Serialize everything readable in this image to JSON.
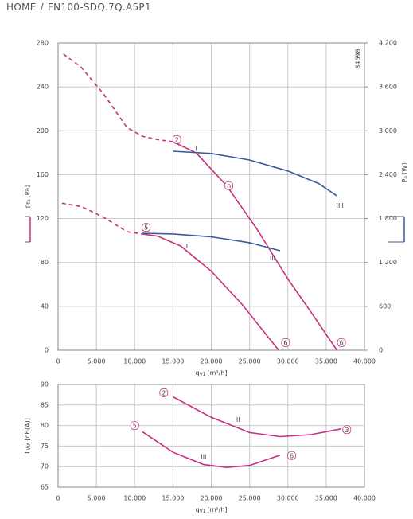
{
  "breadcrumb": {
    "home": "HOME",
    "separator": "/",
    "current": "FN100-SDQ.7Q.A5P1"
  },
  "chart_data": [
    {
      "type": "line",
      "code": "84698",
      "x_label": {
        "main": "q",
        "sub": "V1",
        "unit": "[m³/h]"
      },
      "y_label": {
        "main": "p",
        "sub": "fa",
        "unit": "[Pa]"
      },
      "y2_label": {
        "main": "P",
        "sub": "e",
        "unit": "[W]"
      },
      "xlim": [
        0,
        40000
      ],
      "xticks": [
        0,
        {
          "value": 5000,
          "label": "5.000"
        },
        {
          "value": 10000,
          "label": "10.000"
        },
        {
          "value": 15000,
          "label": "15.000"
        },
        {
          "value": 20000,
          "label": "20.000"
        },
        {
          "value": 25000,
          "label": "25.000"
        },
        {
          "value": 30000,
          "label": "30.000"
        },
        {
          "value": 35000,
          "label": "35.000"
        },
        {
          "value": 40000,
          "label": "40.000"
        }
      ],
      "ylim": [
        0,
        280
      ],
      "yticks": [
        0,
        40,
        80,
        120,
        160,
        200,
        240,
        280
      ],
      "y2lim": [
        0,
        4200
      ],
      "y2ticks": [
        0,
        600,
        {
          "value": 1200,
          "label": "1.200"
        },
        {
          "value": 1800,
          "label": "1.800"
        },
        {
          "value": 2400,
          "label": "2.400"
        },
        {
          "value": 3000,
          "label": "3.000"
        },
        {
          "value": 3600,
          "label": "3.600"
        },
        {
          "value": 4200,
          "label": "4.200"
        }
      ],
      "grid": true,
      "series": [
        {
          "color": "#c8307e",
          "dash": true,
          "x": [
            700,
            3000,
            6000,
            9000,
            11000,
            13000,
            15000
          ],
          "values": [
            270,
            258,
            233,
            203,
            195,
            192,
            190
          ]
        },
        {
          "color": "#c8307e",
          "x": [
            15000,
            18000,
            22000,
            26000,
            30000,
            33000,
            36400
          ],
          "values": [
            190,
            180,
            150,
            110,
            65,
            35,
            0
          ]
        },
        {
          "color": "#c8307e",
          "dash": true,
          "x": [
            500,
            3000,
            6000,
            9000,
            11000
          ],
          "values": [
            134,
            131,
            121,
            108,
            106
          ]
        },
        {
          "color": "#c8307e",
          "x": [
            11000,
            13000,
            16000,
            20000,
            24000,
            28800
          ],
          "values": [
            106,
            104,
            95,
            72,
            42,
            0
          ]
        },
        {
          "color": "#3a5a9c",
          "axis": "y2",
          "x": [
            15000,
            20000,
            25000,
            30000,
            34000,
            36400
          ],
          "values": [
            2720,
            2690,
            2600,
            2450,
            2280,
            2110
          ]
        },
        {
          "color": "#3a5a9c",
          "axis": "y2",
          "x": [
            11000,
            15000,
            20000,
            25000,
            29000
          ],
          "values": [
            1600,
            1590,
            1550,
            1470,
            1360
          ]
        }
      ],
      "annotations": [
        {
          "text": "2",
          "x": 15500,
          "y": 192,
          "circled": true
        },
        {
          "text": "I",
          "x": 18000,
          "y": 184
        },
        {
          "text": "n",
          "x": 22300,
          "y": 150,
          "circled": true
        },
        {
          "text": "5",
          "x": 11500,
          "y": 112,
          "circled": true
        },
        {
          "text": "II",
          "x": 16700,
          "y": 95
        },
        {
          "text": "III",
          "x": 28000,
          "y": 84
        },
        {
          "text": "IIII",
          "x": 36800,
          "y": 132
        },
        {
          "text": "6",
          "x": 29700,
          "y": 7,
          "circled": true
        },
        {
          "text": "6",
          "x": 37000,
          "y": 7,
          "circled": true
        }
      ]
    },
    {
      "type": "line",
      "x_label": {
        "main": "q",
        "sub": "V1",
        "unit": "[m³/h]"
      },
      "y_label": {
        "main": "L",
        "sub": "WA",
        "unit": "[dB(A)]"
      },
      "xlim": [
        0,
        40000
      ],
      "xticks": [
        0,
        {
          "value": 5000,
          "label": "5.000"
        },
        {
          "value": 10000,
          "label": "10.000"
        },
        {
          "value": 15000,
          "label": "15.000"
        },
        {
          "value": 20000,
          "label": "20.000"
        },
        {
          "value": 25000,
          "label": "25.000"
        },
        {
          "value": 30000,
          "label": "30.000"
        },
        {
          "value": 35000,
          "label": "35.000"
        },
        {
          "value": 40000,
          "label": "40.000"
        }
      ],
      "ylim": [
        65,
        90
      ],
      "yticks": [
        65,
        70,
        75,
        80,
        85,
        90
      ],
      "grid": true,
      "series": [
        {
          "color": "#c8307e",
          "x": [
            15000,
            20000,
            25000,
            29000,
            33000,
            37000
          ],
          "values": [
            87,
            82,
            78.3,
            77.3,
            77.8,
            79.2
          ]
        },
        {
          "color": "#c8307e",
          "x": [
            11000,
            15000,
            19000,
            22000,
            25000,
            29000
          ],
          "values": [
            78.5,
            73.5,
            70.5,
            69.8,
            70.3,
            72.8
          ]
        }
      ],
      "annotations": [
        {
          "text": "2",
          "x": 13800,
          "y": 88,
          "circled": true
        },
        {
          "text": "II",
          "x": 23500,
          "y": 81.5
        },
        {
          "text": "3",
          "x": 37700,
          "y": 79,
          "circled": true
        },
        {
          "text": "5",
          "x": 10000,
          "y": 80,
          "circled": true
        },
        {
          "text": "III",
          "x": 19000,
          "y": 72.5
        },
        {
          "text": "6",
          "x": 30500,
          "y": 72.7,
          "circled": true
        }
      ]
    }
  ]
}
